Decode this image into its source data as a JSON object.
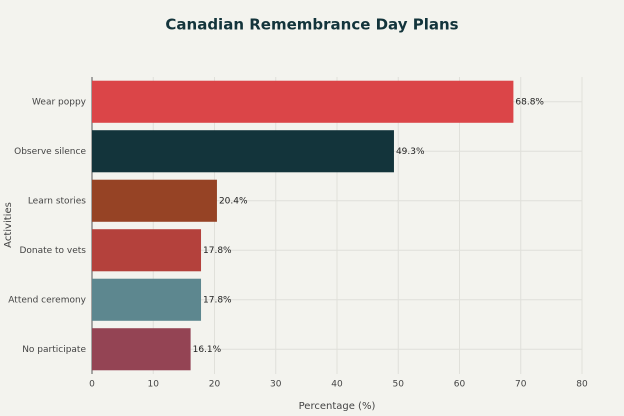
{
  "chart_data": {
    "type": "bar",
    "orientation": "horizontal",
    "title": "Canadian Remembrance Day Plans",
    "x_label": "Percentage (%)",
    "y_label": "Activities",
    "categories": [
      "Wear poppy",
      "Observe silence",
      "Learn stories",
      "Donate to vets",
      "Attend ceremony",
      "No participate"
    ],
    "values": [
      68.8,
      49.3,
      20.4,
      17.8,
      17.8,
      16.1
    ],
    "value_labels": [
      "68.8%",
      "49.3%",
      "20.4%",
      "17.8%",
      "17.8%",
      "16.1%"
    ],
    "colors": [
      "#db4548",
      "#13343b",
      "#964325",
      "#b4413c",
      "#5d878f",
      "#944454"
    ],
    "xlim": [
      0,
      80
    ],
    "xticks": [
      0,
      10,
      20,
      30,
      40,
      50,
      60,
      70,
      80
    ],
    "grid": true
  }
}
